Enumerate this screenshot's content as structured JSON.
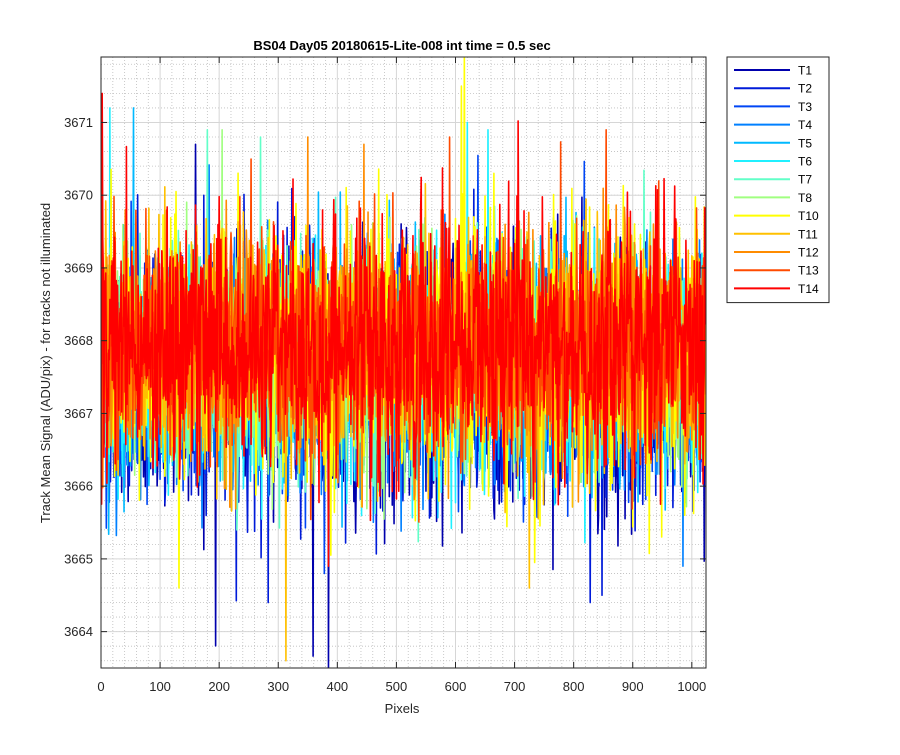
{
  "chart_data": {
    "type": "line",
    "title": "BS04 Day05 20180615-Lite-008 int time = 0.5 sec",
    "xlabel": "Pixels",
    "ylabel": "Track Mean Signal (ADU/pix) - for tracks not illuminated",
    "xlim": [
      0,
      1024
    ],
    "ylim": [
      3663.5,
      3671.9
    ],
    "xticks": [
      0,
      100,
      200,
      300,
      400,
      500,
      600,
      700,
      800,
      900,
      1000
    ],
    "yticks": [
      3664,
      3665,
      3666,
      3667,
      3668,
      3669,
      3670,
      3671
    ],
    "grid": true,
    "minor_grid": true,
    "legend_position": "outside-top-right",
    "n_points_per_series": 1024,
    "series": [
      {
        "name": "T1",
        "color": "#0000ad",
        "mean": 3667.45,
        "min": 3663.5,
        "max": 3670.7,
        "peaks": [
          [
            385,
            3663.5
          ],
          [
            160,
            3670.7
          ]
        ]
      },
      {
        "name": "T2",
        "color": "#001bd9",
        "mean": 3667.5,
        "min": 3664.4,
        "max": 3670.5,
        "peaks": [
          [
            283,
            3664.4
          ],
          [
            828,
            3664.4
          ],
          [
            848,
            3664.5
          ]
        ]
      },
      {
        "name": "T3",
        "color": "#0046f5",
        "mean": 3667.55,
        "min": 3664.8,
        "max": 3670.6,
        "peaks": [
          [
            378,
            3664.8
          ]
        ]
      },
      {
        "name": "T4",
        "color": "#0080ff",
        "mean": 3667.6,
        "min": 3664.9,
        "max": 3670.7,
        "peaks": [
          [
            985,
            3664.9
          ]
        ]
      },
      {
        "name": "T5",
        "color": "#00b9ff",
        "mean": 3667.65,
        "min": 3665.0,
        "max": 3671.2,
        "peaks": [
          [
            55,
            3671.2
          ]
        ]
      },
      {
        "name": "T6",
        "color": "#20f0ff",
        "mean": 3667.7,
        "min": 3665.0,
        "max": 3671.2,
        "peaks": [
          [
            15,
            3671.2
          ],
          [
            620,
            3671.0
          ],
          [
            655,
            3670.9
          ]
        ]
      },
      {
        "name": "T7",
        "color": "#62ffc8",
        "mean": 3667.75,
        "min": 3665.0,
        "max": 3670.9,
        "peaks": [
          [
            180,
            3670.9
          ],
          [
            270,
            3670.8
          ]
        ]
      },
      {
        "name": "T8",
        "color": "#a0ff80",
        "mean": 3667.8,
        "min": 3665.2,
        "max": 3670.9,
        "peaks": [
          [
            205,
            3670.9
          ]
        ]
      },
      {
        "name": "T10",
        "color": "#ffff00",
        "mean": 3667.85,
        "min": 3664.6,
        "max": 3671.9,
        "peaks": [
          [
            615,
            3671.9
          ],
          [
            610,
            3671.5
          ],
          [
            132,
            3664.6
          ]
        ]
      },
      {
        "name": "T11",
        "color": "#ffc000",
        "mean": 3667.9,
        "min": 3663.6,
        "max": 3670.8,
        "peaks": [
          [
            313,
            3663.6
          ],
          [
            725,
            3664.6
          ]
        ]
      },
      {
        "name": "T12",
        "color": "#ff8c00",
        "mean": 3667.9,
        "min": 3665.3,
        "max": 3670.8,
        "peaks": [
          [
            350,
            3670.8
          ],
          [
            445,
            3670.7
          ]
        ]
      },
      {
        "name": "T13",
        "color": "#ff4a00",
        "mean": 3667.95,
        "min": 3665.3,
        "max": 3670.9,
        "peaks": [
          [
            590,
            3670.8
          ],
          [
            855,
            3670.9
          ]
        ]
      },
      {
        "name": "T14",
        "color": "#ff0000",
        "mean": 3668.0,
        "min": 3664.9,
        "max": 3671.4,
        "peaks": [
          [
            2,
            3671.4
          ],
          [
            385,
            3664.9
          ]
        ]
      }
    ]
  }
}
